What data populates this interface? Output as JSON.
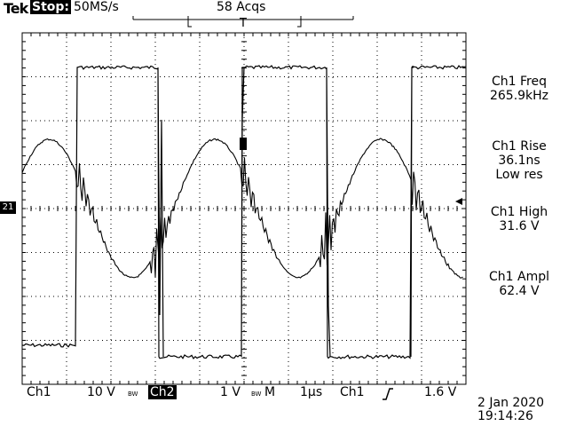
{
  "header": {
    "brand": "Tek",
    "run_state": "Stop:",
    "sample_rate": "50MS/s",
    "acquisitions": "58 Acqs",
    "trigger_marker": "T"
  },
  "measurements": [
    {
      "label": "Ch1 Freq",
      "value": "265.9kHz",
      "extra": ""
    },
    {
      "label": "Ch1 Rise",
      "value": "36.1ns",
      "extra": "Low res"
    },
    {
      "label": "Ch1 High",
      "value": "31.6 V",
      "extra": ""
    },
    {
      "label": "Ch1 Ampl",
      "value": "62.4 V",
      "extra": ""
    }
  ],
  "channel_markers": {
    "ch2_ground": "2",
    "ch1_ground": "1"
  },
  "bottom_bar": {
    "ch1_label": "Ch1",
    "ch1_scale": "10 V",
    "bw_symbol": "BW",
    "ch2_label": "Ch2",
    "ch2_scale": "1 V",
    "bw_symbol2": "BW",
    "timebase_prefix": "M",
    "timebase": "1µs",
    "trigger_source": "Ch1",
    "trigger_slope_icon": "rising-edge-icon",
    "trigger_level": "1.6 V"
  },
  "datetime": {
    "date": "2 Jan 2020",
    "time": "19:14:26"
  },
  "colors": {
    "background": "#ffffff",
    "trace": "#000000",
    "graticule": "#000000"
  }
}
